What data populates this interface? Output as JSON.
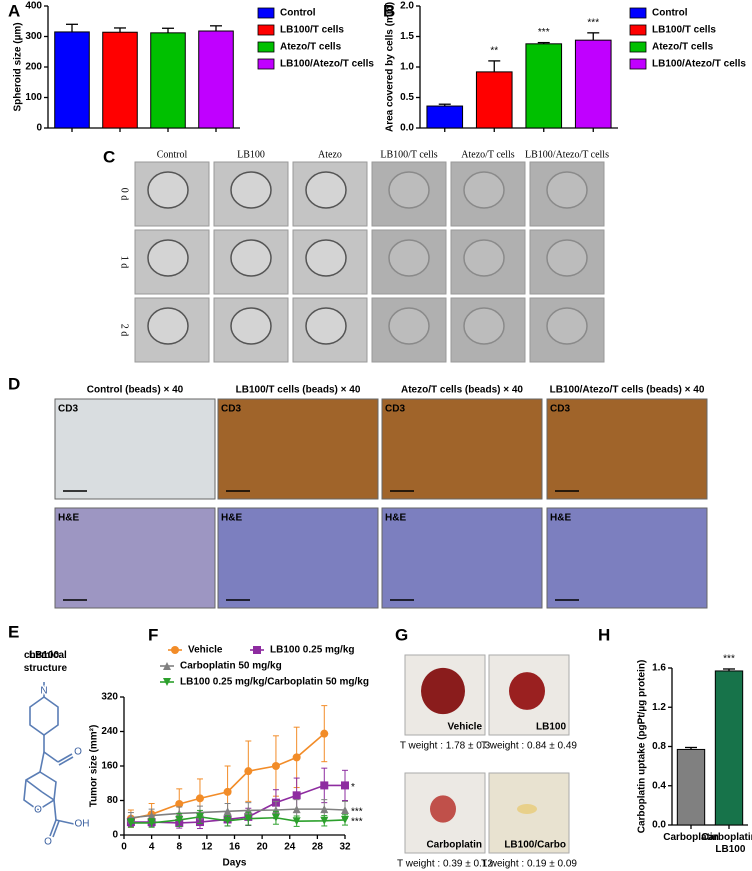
{
  "chart_data": [
    {
      "type": "bar",
      "label": "A",
      "ylabel": "Spheroid size (µm)",
      "categories": [
        "Control",
        "LB100/T cells",
        "Atezo/T cells",
        "LB100/Atezo/T cells"
      ],
      "values": [
        315,
        314,
        312,
        318
      ],
      "errors": [
        25,
        14,
        15,
        17
      ],
      "colors": [
        "#0000ff",
        "#ff0000",
        "#00c000",
        "#c000ff"
      ],
      "ylim": [
        0,
        400
      ],
      "yticks": [
        0,
        100,
        200,
        300,
        400
      ],
      "legend": "right"
    },
    {
      "type": "bar",
      "label": "B",
      "ylabel": "Area covered by cells (mm)",
      "categories": [
        "Control",
        "LB100/T cells",
        "Atezo/T cells",
        "LB100/Atezo/T cells"
      ],
      "values": [
        0.36,
        0.92,
        1.38,
        1.44
      ],
      "errors": [
        0.03,
        0.18,
        0.02,
        0.12
      ],
      "significance": [
        null,
        "**",
        "***",
        "***"
      ],
      "colors": [
        "#0000ff",
        "#ff0000",
        "#00c000",
        "#c000ff"
      ],
      "ylim": [
        0,
        2
      ],
      "yticks": [
        {
          "value": 0,
          "label": "0.0"
        },
        0.5,
        {
          "value": 1,
          "label": "1.0"
        },
        1.5,
        {
          "value": 2,
          "label": "2.0"
        }
      ],
      "legend": "right"
    },
    {
      "type": "line",
      "label": "F",
      "ylabel": "Tumor size (mm²)",
      "xlabel": "Days",
      "x": [
        1,
        4,
        8,
        11,
        15,
        18,
        22,
        25,
        29,
        32
      ],
      "series": [
        {
          "name": "Vehicle",
          "color": "#f28c28",
          "marker": "circle",
          "values": [
            38,
            48,
            72,
            85,
            100,
            148,
            160,
            180,
            235,
            null
          ],
          "errors": [
            20,
            25,
            35,
            45,
            60,
            70,
            70,
            70,
            65,
            null
          ]
        },
        {
          "name": "LB100 0.25 mg/kg",
          "color": "#8e2ca0",
          "marker": "square",
          "values": [
            30,
            30,
            28,
            30,
            36,
            42,
            75,
            92,
            115,
            115
          ],
          "errors": [
            10,
            10,
            12,
            15,
            15,
            20,
            30,
            40,
            40,
            35
          ],
          "significance": "*"
        },
        {
          "name": "Carboplatin 50 mg/kg",
          "color": "#808080",
          "marker": "triangle",
          "values": [
            40,
            45,
            50,
            52,
            55,
            57,
            58,
            60,
            60,
            58
          ],
          "errors": [
            12,
            15,
            15,
            15,
            18,
            18,
            20,
            22,
            22,
            20
          ],
          "significance": "***"
        },
        {
          "name": "LB100 0.25 mg/kg/Carboplatin 50 mg/kg",
          "color": "#2ca02c",
          "marker": "triangle-down",
          "values": [
            28,
            28,
            35,
            42,
            33,
            38,
            40,
            32,
            33,
            35
          ],
          "errors": [
            10,
            10,
            15,
            15,
            12,
            15,
            15,
            12,
            12,
            12
          ],
          "significance": "***"
        }
      ],
      "xlim": [
        0,
        32
      ],
      "xticks": [
        0,
        4,
        8,
        12,
        16,
        20,
        24,
        28,
        32
      ],
      "ylim": [
        0,
        320
      ],
      "yticks": [
        0,
        80,
        160,
        240,
        320
      ]
    },
    {
      "type": "bar",
      "label": "H",
      "ylabel": "Carboplatin uptake (pgPt/µg protein)",
      "categories": [
        "Carboplatin",
        "Carboplatin LB100"
      ],
      "values": [
        0.77,
        1.57
      ],
      "errors": [
        0.02,
        0.02
      ],
      "significance": [
        null,
        "***"
      ],
      "colors": [
        "#808080",
        "#17734a"
      ],
      "ylim": [
        0,
        1.6
      ],
      "yticks": [
        {
          "value": 0,
          "label": "0.0"
        },
        0.4,
        0.8,
        1.2,
        1.6
      ]
    }
  ],
  "panel_c": {
    "label": "C",
    "columns": [
      "Control",
      "LB100",
      "Atezo",
      "LB100/T cells",
      "Atezo/T cells",
      "LB100/Atezo/T cells"
    ],
    "rows": [
      "0 d",
      "1 d",
      "2 d"
    ]
  },
  "panel_d": {
    "label": "D",
    "columns": [
      "Control (beads) × 40",
      "LB100/T cells (beads) × 40",
      "Atezo/T cells (beads) × 40",
      "LB100/Atezo/T cells (beads) × 40"
    ],
    "rows": [
      "CD3",
      "H&E"
    ]
  },
  "panel_e": {
    "label": "E",
    "title": "LB100 chemical structure",
    "atoms": [
      "N",
      "O",
      "O",
      "OH",
      "O"
    ]
  },
  "panel_g": {
    "label": "G",
    "tiles": [
      {
        "label": "Vehicle",
        "caption": "T weight : 1.78 ± 0.3"
      },
      {
        "label": "LB100",
        "caption": "T weight : 0.84 ± 0.49"
      },
      {
        "label": "Carboplatin",
        "caption": "T weight : 0.39 ± 0.12"
      },
      {
        "label": "LB100/Carbo",
        "caption": "T weight : 0.19 ± 0.09"
      }
    ]
  }
}
